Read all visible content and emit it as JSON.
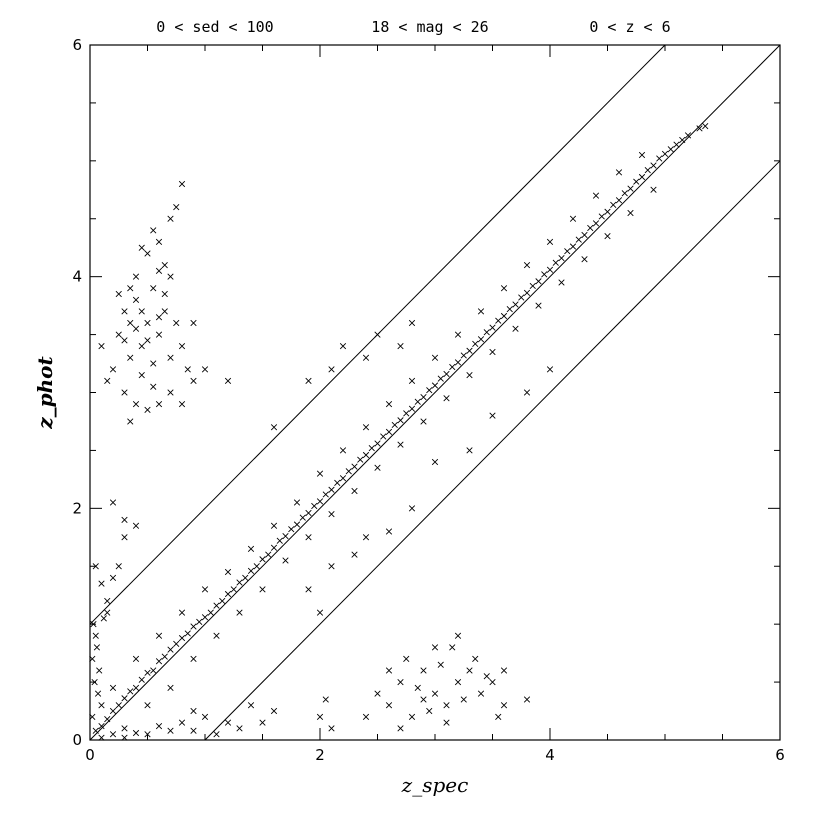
{
  "chart_data": {
    "type": "scatter",
    "title": "",
    "header_labels": [
      "0 < sed < 100",
      "18 < mag < 26",
      "0 < z < 6"
    ],
    "xlabel": "z_spec",
    "ylabel": "z_phot",
    "xlim": [
      0,
      6
    ],
    "ylim": [
      0,
      6
    ],
    "x_ticks": [
      0,
      2,
      4,
      6
    ],
    "y_ticks": [
      0,
      2,
      4,
      6
    ],
    "minor_tick_step": 0.5,
    "grid": false,
    "legend": "none",
    "marker": "x",
    "reference_lines": [
      {
        "slope": 1,
        "intercept": 0
      },
      {
        "slope": 1,
        "intercept": 1
      },
      {
        "slope": 1,
        "intercept": -1
      }
    ],
    "series": [
      {
        "points": [
          [
            0.05,
            0.08
          ],
          [
            0.1,
            0.12
          ],
          [
            0.15,
            0.18
          ],
          [
            0.2,
            0.25
          ],
          [
            0.25,
            0.3
          ],
          [
            0.3,
            0.36
          ],
          [
            0.35,
            0.42
          ],
          [
            0.4,
            0.45
          ],
          [
            0.45,
            0.52
          ],
          [
            0.5,
            0.58
          ],
          [
            0.55,
            0.6
          ],
          [
            0.6,
            0.68
          ],
          [
            0.65,
            0.72
          ],
          [
            0.7,
            0.78
          ],
          [
            0.75,
            0.83
          ],
          [
            0.8,
            0.88
          ],
          [
            0.85,
            0.92
          ],
          [
            0.9,
            0.98
          ],
          [
            0.95,
            1.02
          ],
          [
            1.0,
            1.06
          ],
          [
            1.05,
            1.1
          ],
          [
            1.1,
            1.16
          ],
          [
            1.15,
            1.2
          ],
          [
            1.2,
            1.26
          ],
          [
            1.25,
            1.3
          ],
          [
            1.3,
            1.36
          ],
          [
            1.35,
            1.4
          ],
          [
            1.4,
            1.46
          ],
          [
            1.45,
            1.5
          ],
          [
            1.5,
            1.56
          ],
          [
            1.55,
            1.6
          ],
          [
            1.6,
            1.66
          ],
          [
            1.65,
            1.72
          ],
          [
            1.7,
            1.76
          ],
          [
            1.75,
            1.82
          ],
          [
            1.8,
            1.86
          ],
          [
            1.85,
            1.92
          ],
          [
            1.9,
            1.96
          ],
          [
            1.95,
            2.02
          ],
          [
            2.0,
            2.06
          ],
          [
            2.05,
            2.12
          ],
          [
            2.1,
            2.16
          ],
          [
            2.15,
            2.22
          ],
          [
            2.2,
            2.26
          ],
          [
            2.25,
            2.32
          ],
          [
            2.3,
            2.36
          ],
          [
            2.35,
            2.42
          ],
          [
            2.4,
            2.46
          ],
          [
            2.45,
            2.52
          ],
          [
            2.5,
            2.56
          ],
          [
            2.55,
            2.62
          ],
          [
            2.6,
            2.66
          ],
          [
            2.65,
            2.72
          ],
          [
            2.7,
            2.76
          ],
          [
            2.75,
            2.82
          ],
          [
            2.8,
            2.86
          ],
          [
            2.85,
            2.92
          ],
          [
            2.9,
            2.96
          ],
          [
            2.95,
            3.02
          ],
          [
            3.0,
            3.06
          ],
          [
            3.05,
            3.12
          ],
          [
            3.1,
            3.16
          ],
          [
            3.15,
            3.22
          ],
          [
            3.2,
            3.26
          ],
          [
            3.25,
            3.32
          ],
          [
            3.3,
            3.36
          ],
          [
            3.35,
            3.42
          ],
          [
            3.4,
            3.46
          ],
          [
            3.45,
            3.52
          ],
          [
            3.5,
            3.56
          ],
          [
            3.55,
            3.62
          ],
          [
            3.6,
            3.66
          ],
          [
            3.65,
            3.72
          ],
          [
            3.7,
            3.76
          ],
          [
            3.75,
            3.82
          ],
          [
            3.8,
            3.86
          ],
          [
            3.85,
            3.92
          ],
          [
            3.9,
            3.96
          ],
          [
            3.95,
            4.02
          ],
          [
            4.0,
            4.06
          ],
          [
            4.05,
            4.12
          ],
          [
            4.1,
            4.16
          ],
          [
            4.15,
            4.22
          ],
          [
            4.2,
            4.26
          ],
          [
            4.25,
            4.32
          ],
          [
            4.3,
            4.36
          ],
          [
            4.35,
            4.42
          ],
          [
            4.4,
            4.46
          ],
          [
            4.45,
            4.52
          ],
          [
            4.5,
            4.56
          ],
          [
            4.55,
            4.62
          ],
          [
            4.6,
            4.66
          ],
          [
            4.65,
            4.72
          ],
          [
            4.7,
            4.76
          ],
          [
            4.75,
            4.82
          ],
          [
            4.8,
            4.86
          ],
          [
            4.85,
            4.92
          ],
          [
            4.9,
            4.96
          ],
          [
            4.95,
            5.02
          ],
          [
            5.0,
            5.06
          ],
          [
            5.05,
            5.1
          ],
          [
            5.1,
            5.14
          ],
          [
            5.15,
            5.18
          ],
          [
            5.2,
            5.22
          ],
          [
            5.3,
            5.28
          ],
          [
            5.35,
            5.3
          ],
          [
            0.3,
            0.1
          ],
          [
            0.5,
            0.3
          ],
          [
            0.7,
            0.45
          ],
          [
            0.9,
            0.7
          ],
          [
            1.1,
            0.9
          ],
          [
            1.3,
            1.1
          ],
          [
            1.5,
            1.3
          ],
          [
            1.7,
            1.55
          ],
          [
            1.9,
            1.75
          ],
          [
            2.1,
            1.95
          ],
          [
            2.3,
            2.15
          ],
          [
            2.5,
            2.35
          ],
          [
            2.7,
            2.55
          ],
          [
            2.9,
            2.75
          ],
          [
            3.1,
            2.95
          ],
          [
            3.3,
            3.15
          ],
          [
            3.5,
            3.35
          ],
          [
            3.7,
            3.55
          ],
          [
            3.9,
            3.75
          ],
          [
            4.1,
            3.95
          ],
          [
            4.3,
            4.15
          ],
          [
            4.5,
            4.35
          ],
          [
            4.7,
            4.55
          ],
          [
            4.9,
            4.75
          ],
          [
            0.2,
            0.45
          ],
          [
            0.4,
            0.7
          ],
          [
            0.6,
            0.9
          ],
          [
            0.8,
            1.1
          ],
          [
            1.0,
            1.3
          ],
          [
            1.2,
            1.45
          ],
          [
            1.4,
            1.65
          ],
          [
            1.6,
            1.85
          ],
          [
            1.8,
            2.05
          ],
          [
            2.0,
            2.3
          ],
          [
            2.2,
            2.5
          ],
          [
            2.4,
            2.7
          ],
          [
            2.6,
            2.9
          ],
          [
            2.8,
            3.1
          ],
          [
            3.0,
            3.3
          ],
          [
            3.2,
            3.5
          ],
          [
            3.4,
            3.7
          ],
          [
            3.6,
            3.9
          ],
          [
            3.8,
            4.1
          ],
          [
            4.0,
            4.3
          ],
          [
            4.2,
            4.5
          ],
          [
            4.4,
            4.7
          ],
          [
            4.6,
            4.9
          ],
          [
            4.8,
            5.05
          ],
          [
            1.6,
            2.7
          ],
          [
            1.9,
            3.1
          ],
          [
            2.2,
            3.4
          ],
          [
            2.5,
            3.5
          ],
          [
            2.7,
            3.4
          ],
          [
            2.8,
            3.6
          ],
          [
            2.1,
            3.2
          ],
          [
            2.4,
            3.3
          ],
          [
            1.9,
            1.3
          ],
          [
            2.0,
            1.1
          ],
          [
            2.3,
            1.6
          ],
          [
            2.6,
            1.8
          ],
          [
            2.4,
            1.75
          ],
          [
            2.1,
            1.5
          ],
          [
            2.8,
            2.0
          ],
          [
            3.3,
            2.5
          ],
          [
            3.8,
            3.0
          ],
          [
            4.0,
            3.2
          ],
          [
            3.5,
            2.8
          ],
          [
            3.0,
            2.4
          ],
          [
            0.02,
            0.2
          ],
          [
            0.04,
            0.5
          ],
          [
            0.06,
            0.8
          ],
          [
            0.03,
            1.0
          ],
          [
            0.05,
            0.9
          ],
          [
            0.08,
            0.6
          ],
          [
            0.1,
            0.3
          ],
          [
            0.12,
            1.05
          ],
          [
            0.02,
            0.7
          ],
          [
            0.07,
            0.4
          ],
          [
            0.15,
            1.2
          ],
          [
            0.2,
            1.4
          ],
          [
            0.25,
            1.5
          ],
          [
            0.3,
            1.75
          ],
          [
            0.3,
            1.9
          ],
          [
            0.2,
            2.05
          ],
          [
            0.4,
            1.85
          ],
          [
            0.15,
            1.1
          ],
          [
            0.1,
            1.35
          ],
          [
            0.05,
            1.5
          ],
          [
            0.2,
            3.2
          ],
          [
            0.25,
            3.5
          ],
          [
            0.3,
            3.7
          ],
          [
            0.35,
            3.3
          ],
          [
            0.4,
            3.8
          ],
          [
            0.45,
            3.4
          ],
          [
            0.5,
            3.6
          ],
          [
            0.55,
            3.9
          ],
          [
            0.6,
            3.5
          ],
          [
            0.65,
            3.7
          ],
          [
            0.7,
            3.3
          ],
          [
            0.75,
            3.6
          ],
          [
            0.8,
            3.4
          ],
          [
            0.85,
            3.2
          ],
          [
            0.9,
            3.1
          ],
          [
            0.4,
            4.0
          ],
          [
            0.5,
            4.2
          ],
          [
            0.6,
            4.3
          ],
          [
            0.7,
            4.5
          ],
          [
            0.8,
            4.8
          ],
          [
            0.75,
            4.6
          ],
          [
            0.65,
            4.1
          ],
          [
            0.55,
            4.4
          ],
          [
            0.45,
            4.25
          ],
          [
            0.35,
            3.9
          ],
          [
            0.3,
            3.0
          ],
          [
            0.4,
            2.9
          ],
          [
            0.5,
            2.85
          ],
          [
            0.6,
            2.9
          ],
          [
            0.7,
            3.0
          ],
          [
            0.35,
            2.75
          ],
          [
            0.8,
            2.9
          ],
          [
            0.9,
            3.6
          ],
          [
            1.0,
            3.2
          ],
          [
            1.2,
            3.1
          ],
          [
            0.1,
            3.4
          ],
          [
            0.15,
            3.1
          ],
          [
            0.25,
            3.85
          ],
          [
            0.45,
            3.15
          ],
          [
            0.55,
            3.25
          ],
          [
            0.6,
            3.65
          ],
          [
            0.5,
            3.45
          ],
          [
            0.4,
            3.55
          ],
          [
            0.3,
            3.45
          ],
          [
            0.65,
            3.85
          ],
          [
            0.7,
            4.0
          ],
          [
            0.55,
            3.05
          ],
          [
            0.45,
            3.7
          ],
          [
            0.35,
            3.6
          ],
          [
            0.6,
            4.05
          ],
          [
            2.5,
            0.4
          ],
          [
            2.6,
            0.3
          ],
          [
            2.7,
            0.5
          ],
          [
            2.8,
            0.2
          ],
          [
            2.9,
            0.6
          ],
          [
            3.0,
            0.4
          ],
          [
            3.1,
            0.3
          ],
          [
            3.2,
            0.5
          ],
          [
            3.3,
            0.6
          ],
          [
            3.4,
            0.4
          ],
          [
            3.5,
            0.5
          ],
          [
            3.6,
            0.3
          ],
          [
            2.75,
            0.7
          ],
          [
            2.85,
            0.45
          ],
          [
            2.95,
            0.25
          ],
          [
            3.05,
            0.65
          ],
          [
            3.15,
            0.8
          ],
          [
            3.25,
            0.35
          ],
          [
            3.35,
            0.7
          ],
          [
            3.45,
            0.55
          ],
          [
            3.55,
            0.2
          ],
          [
            3.6,
            0.6
          ],
          [
            3.8,
            0.35
          ],
          [
            2.6,
            0.6
          ],
          [
            3.0,
            0.8
          ],
          [
            3.2,
            0.9
          ],
          [
            2.4,
            0.2
          ],
          [
            2.7,
            0.1
          ],
          [
            3.1,
            0.15
          ],
          [
            2.9,
            0.35
          ],
          [
            2.0,
            0.2
          ],
          [
            2.1,
            0.1
          ],
          [
            2.05,
            0.35
          ],
          [
            1.5,
            0.15
          ],
          [
            1.6,
            0.25
          ],
          [
            1.2,
            0.15
          ],
          [
            1.0,
            0.2
          ],
          [
            1.3,
            0.1
          ],
          [
            0.9,
            0.25
          ],
          [
            1.4,
            0.3
          ],
          [
            0.5,
            0.05
          ],
          [
            0.7,
            0.08
          ],
          [
            0.8,
            0.15
          ],
          [
            1.1,
            0.05
          ],
          [
            0.6,
            0.12
          ],
          [
            0.9,
            0.08
          ],
          [
            0.3,
            0.02
          ],
          [
            0.4,
            0.06
          ],
          [
            0.2,
            0.05
          ],
          [
            0.1,
            0.02
          ]
        ]
      }
    ]
  }
}
